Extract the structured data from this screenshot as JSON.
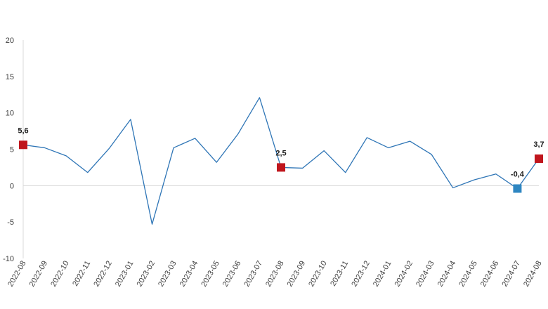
{
  "chart_data": {
    "type": "line",
    "title": "",
    "xlabel": "",
    "ylabel": "",
    "ylim": [
      -10,
      20
    ],
    "yticks": [
      20,
      15,
      10,
      5,
      0,
      -5,
      -10
    ],
    "grid": false,
    "legend": "none",
    "categories": [
      "2022-08",
      "2022-09",
      "2022-10",
      "2022-11",
      "2022-12",
      "2023-01",
      "2023-02",
      "2023-03",
      "2023-04",
      "2023-05",
      "2023-06",
      "2023-07",
      "2023-08",
      "2023-09",
      "2023-10",
      "2023-11",
      "2023-12",
      "2024-01",
      "2024-02",
      "2024-03",
      "2024-04",
      "2024-05",
      "2024-06",
      "2024-07",
      "2024-08"
    ],
    "series": [
      {
        "values": [
          5.6,
          5.2,
          4.1,
          1.8,
          5.1,
          9.1,
          -5.3,
          5.2,
          6.5,
          3.2,
          7.1,
          12.1,
          2.5,
          2.4,
          4.8,
          1.8,
          6.6,
          5.2,
          6.1,
          4.3,
          -0.3,
          0.8,
          1.6,
          -0.4,
          3.7
        ],
        "color": "#2e75b6"
      }
    ],
    "highlights": [
      {
        "index": 0,
        "label": "5,6",
        "color": "#c0161d"
      },
      {
        "index": 12,
        "label": "2,5",
        "color": "#c0161d"
      },
      {
        "index": 23,
        "label": "-0,4",
        "color": "#2e86c1"
      },
      {
        "index": 24,
        "label": "3,7",
        "color": "#c0161d"
      }
    ],
    "axis_color": "#d9d9d9"
  }
}
